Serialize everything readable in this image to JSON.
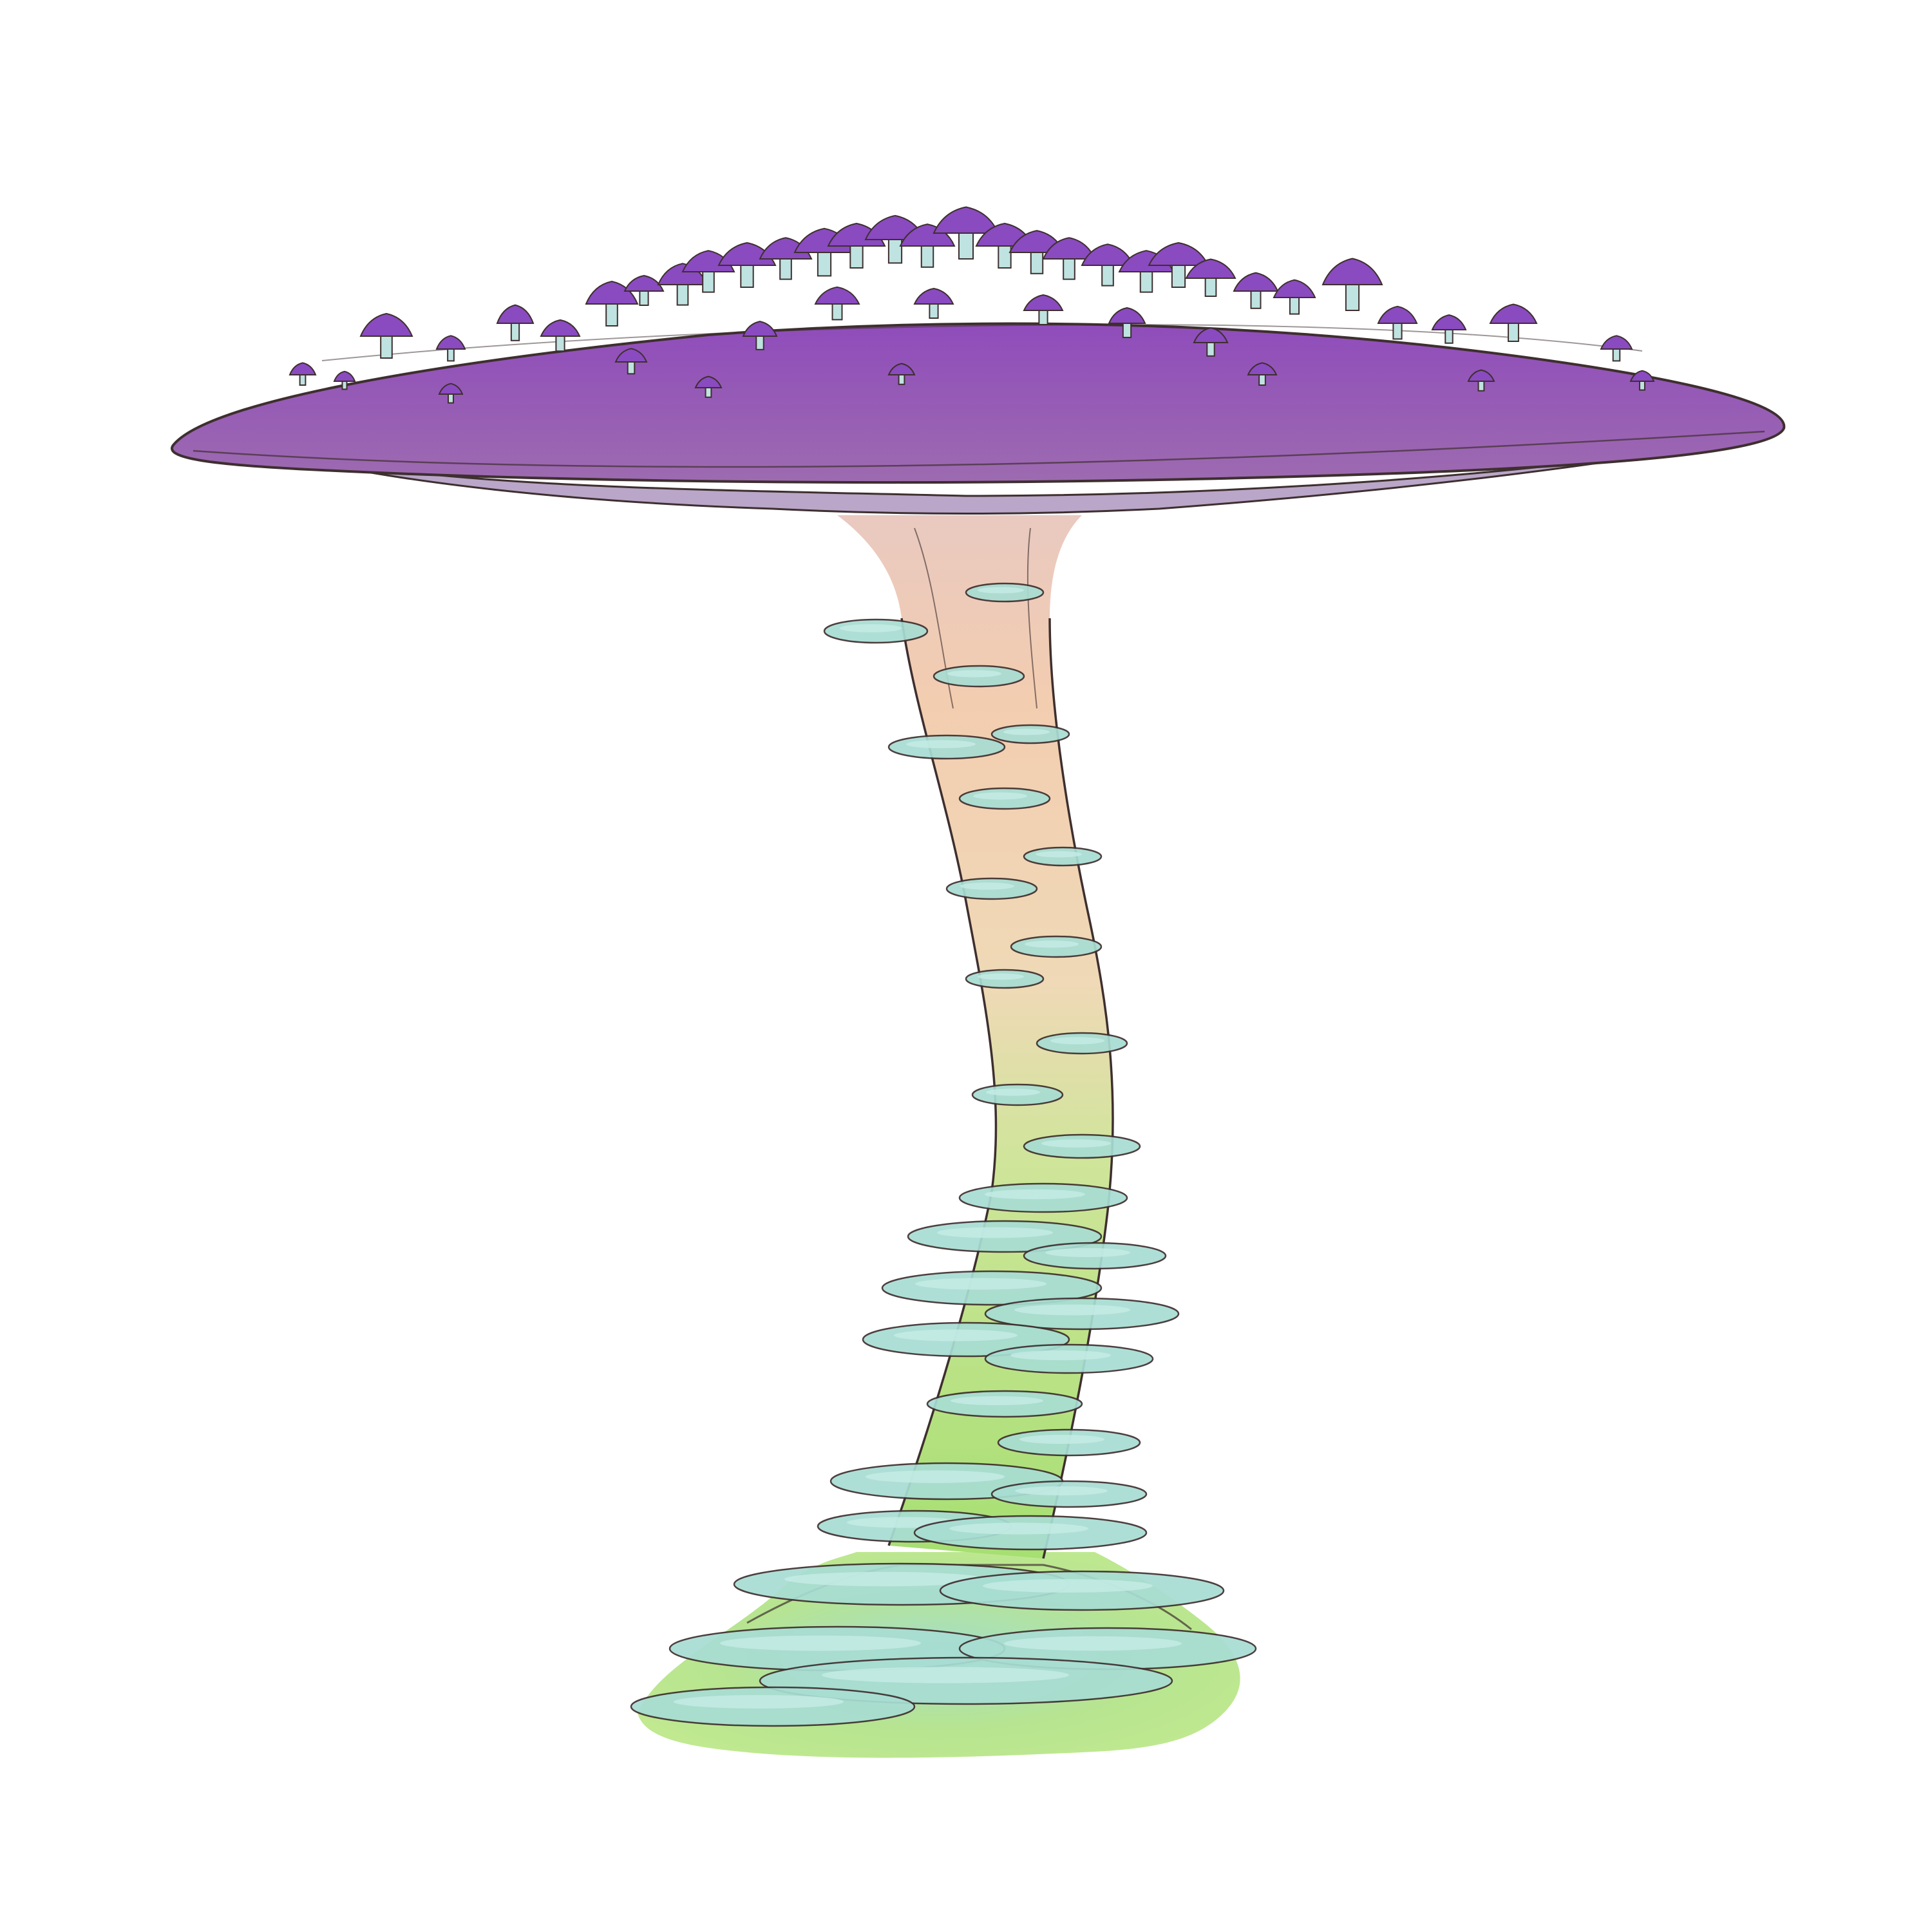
{
  "illustration": {
    "subject": "",
    "colors": {
      "background": "#ffffff",
      "cap_purple": "#9b5fb2",
      "cap_purple_dark": "#7a3fa8",
      "cap_underside": "#b9a6c8",
      "small_cap_purple": "#8a4ac0",
      "small_stem": "#bfe3e0",
      "stalk_top": "#f3cdb0",
      "stalk_mid": "#f0d8b8",
      "stalk_bottom": "#a8e07a",
      "shelf_fungus": "#a8ddd3",
      "shelf_fungus_light": "#c6ece6",
      "base_green": "#b5e680",
      "outline": "#3e2f2f"
    }
  }
}
